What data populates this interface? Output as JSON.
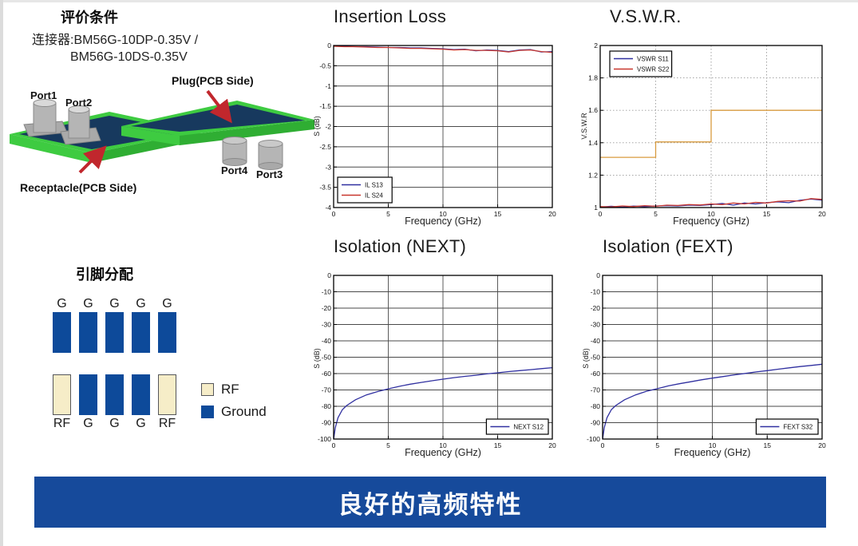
{
  "evaluation": {
    "title": "评价条件",
    "connector_line1": "连接器:BM56G-10DP-0.35V /",
    "connector_line2": "BM56G-10DS-0.35V",
    "diagram": {
      "port1": "Port1",
      "port2": "Port2",
      "port3": "Port3",
      "port4": "Port4",
      "plug_label": "Plug(PCB Side)",
      "receptacle_label": "Receptacle(PCB Side)",
      "board_top_color": "#17395e",
      "board_edge_color": "#3ecb41",
      "board_edge_dark": "#2fae33",
      "cylinder_color": "#b5b5b5",
      "arrow_color": "#c1272d"
    }
  },
  "pin_assignment": {
    "title": "引脚分配",
    "top_labels": [
      "G",
      "G",
      "G",
      "G",
      "G"
    ],
    "top_types": [
      "ground",
      "ground",
      "ground",
      "ground",
      "ground"
    ],
    "bottom_labels": [
      "RF",
      "G",
      "G",
      "G",
      "RF"
    ],
    "bottom_types": [
      "rf",
      "ground",
      "ground",
      "ground",
      "rf"
    ],
    "legend": [
      {
        "label": "RF",
        "type": "rf"
      },
      {
        "label": "Ground",
        "type": "ground"
      }
    ],
    "colors": {
      "rf": "#f6edc8",
      "ground": "#0d4a9a"
    }
  },
  "banner": {
    "text": "良好的高频特性",
    "bg": "#164a9b",
    "fg": "#ffffff"
  },
  "chart_data": [
    {
      "type": "line",
      "title": "Insertion Loss",
      "xlabel": "Frequency (GHz)",
      "ylabel": "S (dB)",
      "xlim": [
        0,
        20
      ],
      "ylim": [
        -4,
        0
      ],
      "xticks": [
        0,
        5,
        10,
        15,
        20
      ],
      "yticks": [
        0,
        -0.5,
        -1,
        -1.5,
        -2,
        -2.5,
        -3,
        -3.5,
        -4
      ],
      "grid": "solid",
      "legend_pos": "bl",
      "series": [
        {
          "name": "IL S13",
          "color": "#3030a0",
          "in_legend": true,
          "x": [
            0,
            1,
            2,
            3,
            4,
            5,
            6,
            7,
            8,
            9,
            10,
            11,
            12,
            13,
            14,
            15,
            16,
            17,
            18,
            19,
            20
          ],
          "y": [
            -0.01,
            -0.02,
            -0.03,
            -0.03,
            -0.04,
            -0.05,
            -0.05,
            -0.06,
            -0.06,
            -0.07,
            -0.08,
            -0.1,
            -0.09,
            -0.13,
            -0.11,
            -0.12,
            -0.15,
            -0.11,
            -0.1,
            -0.16,
            -0.15
          ]
        },
        {
          "name": "IL S24",
          "color": "#c8372e",
          "in_legend": true,
          "x": [
            0,
            1,
            2,
            3,
            4,
            5,
            6,
            7,
            8,
            9,
            10,
            11,
            12,
            13,
            14,
            15,
            16,
            17,
            18,
            19,
            20
          ],
          "y": [
            -0.02,
            -0.03,
            -0.03,
            -0.04,
            -0.05,
            -0.05,
            -0.06,
            -0.07,
            -0.07,
            -0.08,
            -0.09,
            -0.11,
            -0.1,
            -0.12,
            -0.12,
            -0.13,
            -0.16,
            -0.12,
            -0.11,
            -0.15,
            -0.17
          ]
        }
      ]
    },
    {
      "type": "line",
      "title": "V.S.W.R.",
      "xlabel": "Frequency (GHz)",
      "ylabel": "V.S.W.R",
      "xlim": [
        0,
        20
      ],
      "ylim": [
        1,
        2
      ],
      "xticks": [
        0,
        5,
        10,
        15,
        20
      ],
      "yticks": [
        1,
        1.2,
        1.4,
        1.6,
        1.8,
        2
      ],
      "grid": "dotted",
      "legend_pos": "tl",
      "series": [
        {
          "name": "VSWR S11",
          "color": "#3030a0",
          "in_legend": true,
          "x": [
            0,
            1,
            2,
            3,
            4,
            5,
            6,
            7,
            8,
            9,
            10,
            11,
            12,
            13,
            14,
            15,
            16,
            17,
            18,
            19,
            20
          ],
          "y": [
            1.003,
            1.008,
            1.003,
            1.009,
            1.006,
            1.01,
            1.012,
            1.01,
            1.015,
            1.013,
            1.018,
            1.025,
            1.015,
            1.028,
            1.022,
            1.03,
            1.035,
            1.03,
            1.045,
            1.052,
            1.046
          ]
        },
        {
          "name": "VSWR S22",
          "color": "#c8372e",
          "in_legend": true,
          "x": [
            0,
            1,
            2,
            3,
            4,
            5,
            6,
            7,
            8,
            9,
            10,
            11,
            12,
            13,
            14,
            15,
            16,
            17,
            18,
            19,
            20
          ],
          "y": [
            1.006,
            1.004,
            1.01,
            1.006,
            1.012,
            1.008,
            1.015,
            1.013,
            1.018,
            1.016,
            1.022,
            1.018,
            1.028,
            1.022,
            1.032,
            1.028,
            1.038,
            1.042,
            1.04,
            1.055,
            1.05
          ]
        },
        {
          "name": "spec limit",
          "color": "#d89b3f",
          "in_legend": false,
          "x": [
            0,
            5,
            5,
            10,
            10,
            20
          ],
          "y": [
            1.31,
            1.31,
            1.405,
            1.405,
            1.6,
            1.6
          ]
        }
      ]
    },
    {
      "type": "line",
      "title": "Isolation (NEXT)",
      "xlabel": "Frequency (GHz)",
      "ylabel": "S (dB)",
      "xlim": [
        0,
        20
      ],
      "ylim": [
        -100,
        0
      ],
      "xticks": [
        0,
        5,
        10,
        15,
        20
      ],
      "yticks": [
        0,
        -10,
        -20,
        -30,
        -40,
        -50,
        -60,
        -70,
        -80,
        -90,
        -100
      ],
      "grid": "solid",
      "legend_pos": "br",
      "series": [
        {
          "name": "NEXT S12",
          "color": "#3030a0",
          "in_legend": true,
          "x": [
            0,
            0.15,
            0.4,
            0.8,
            1.2,
            2,
            3,
            4,
            5,
            6,
            7,
            8,
            9,
            10,
            11,
            12,
            13,
            14,
            15,
            16,
            17,
            18,
            19,
            20
          ],
          "y": [
            -100,
            -93,
            -87,
            -82,
            -79.5,
            -76,
            -73,
            -71,
            -69.3,
            -67.8,
            -66.5,
            -65.4,
            -64.4,
            -63.4,
            -62.5,
            -61.7,
            -61,
            -60.2,
            -59.5,
            -58.8,
            -58.2,
            -57.6,
            -57,
            -56.4
          ]
        }
      ]
    },
    {
      "type": "line",
      "title": "Isolation (FEXT)",
      "xlabel": "Frequency (GHz)",
      "ylabel": "S (dB)",
      "xlim": [
        0,
        20
      ],
      "ylim": [
        -100,
        0
      ],
      "xticks": [
        0,
        5,
        10,
        15,
        20
      ],
      "yticks": [
        0,
        -10,
        -20,
        -30,
        -40,
        -50,
        -60,
        -70,
        -80,
        -90,
        -100
      ],
      "grid": "solid",
      "legend_pos": "br",
      "series": [
        {
          "name": "FEXT S32",
          "color": "#3030a0",
          "in_legend": true,
          "x": [
            0,
            0.15,
            0.4,
            0.8,
            1.2,
            2,
            3,
            4,
            5,
            6,
            7,
            8,
            9,
            10,
            11,
            12,
            13,
            14,
            15,
            16,
            17,
            18,
            19,
            20
          ],
          "y": [
            -100,
            -93,
            -87,
            -82,
            -79.5,
            -76,
            -73,
            -70.8,
            -69.2,
            -67.5,
            -66.2,
            -65,
            -63.8,
            -62.8,
            -61.8,
            -60.8,
            -59.9,
            -59,
            -58.2,
            -57.3,
            -56.5,
            -55.7,
            -55,
            -54.3
          ]
        }
      ]
    }
  ]
}
